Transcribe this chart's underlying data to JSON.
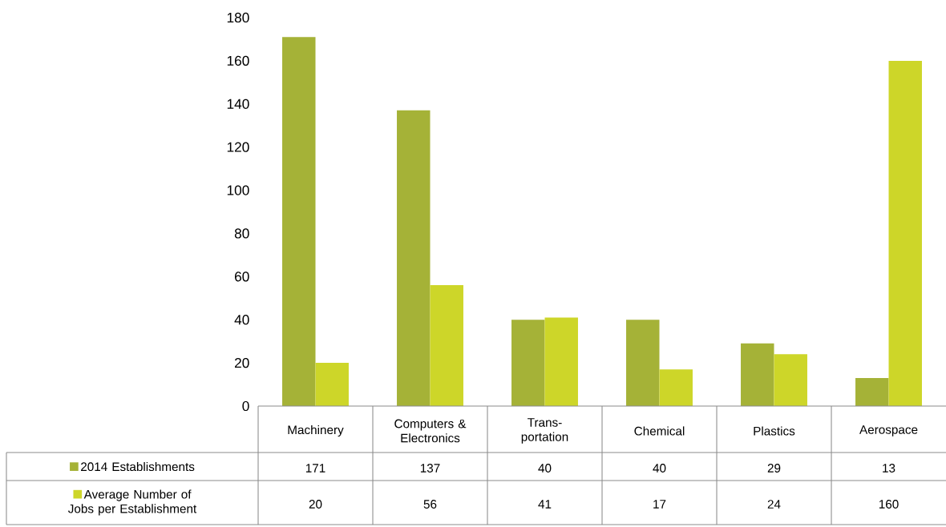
{
  "chart_data": {
    "type": "bar",
    "categories": [
      "Machinery",
      "Computers & Electronics",
      "Trans-portation",
      "Chemical",
      "Plastics",
      "Aerospace"
    ],
    "series": [
      {
        "name": "2014 Establishments",
        "color": "#a5b237",
        "values": [
          171,
          137,
          40,
          40,
          29,
          13
        ]
      },
      {
        "name": "Average Number of Jobs per Establishment",
        "color": "#cdd629",
        "values": [
          20,
          56,
          41,
          17,
          24,
          160
        ]
      }
    ],
    "ylim": [
      0,
      180
    ],
    "yticks": [
      0,
      20,
      40,
      60,
      80,
      100,
      120,
      140,
      160,
      180
    ],
    "data_labels": true,
    "legend": "bottom",
    "grid": false
  }
}
